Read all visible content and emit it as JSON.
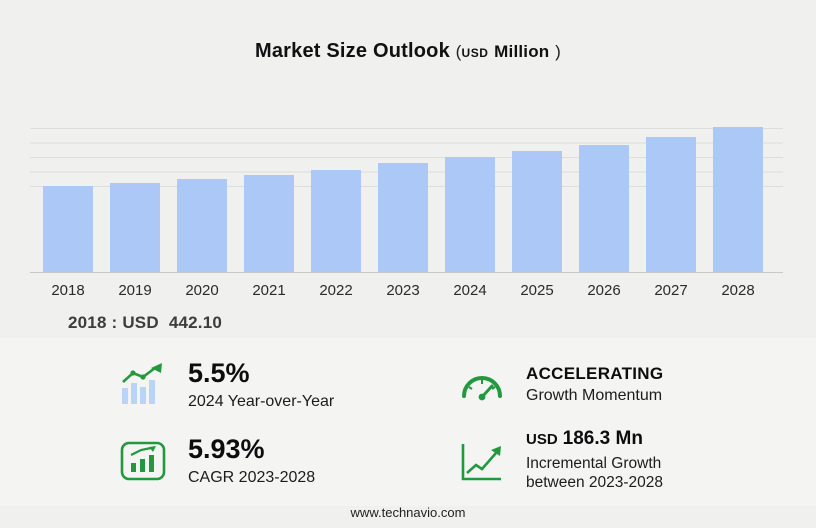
{
  "title": {
    "main": "Market Size Outlook",
    "paren_open": "(",
    "currency": "USD",
    "unit": "Million",
    "paren_close": ")"
  },
  "chart_data": {
    "type": "bar",
    "title": "Market Size Outlook (USD Million)",
    "categories": [
      "2018",
      "2019",
      "2020",
      "2021",
      "2022",
      "2023",
      "2024",
      "2025",
      "2026",
      "2027",
      "2028"
    ],
    "values": [
      442.1,
      458,
      477,
      497,
      523,
      557.9,
      588.6,
      620,
      652,
      694,
      744.2
    ],
    "xlabel": "",
    "ylabel": "USD Million",
    "ylim": [
      0,
      760
    ],
    "grid": true,
    "legend": "none",
    "bar_color": "#abc8f7",
    "annotations": [
      "2018 : USD 442.10"
    ]
  },
  "annotation": {
    "prefix": "2018 : USD",
    "value": "442.10"
  },
  "stats": [
    {
      "icon": "yoy-bars-trend-icon",
      "value": "5.5%",
      "label": "2024 Year-over-Year"
    },
    {
      "icon": "speedometer-icon",
      "value": "ACCELERATING",
      "label": "Growth Momentum"
    },
    {
      "icon": "cagr-chart-icon",
      "value": "5.93%",
      "label": "CAGR 2023-2028"
    },
    {
      "icon": "incremental-growth-icon",
      "value_prefix": "USD",
      "value": "186.3 Mn",
      "label": "Incremental Growth between 2023-2028"
    }
  ],
  "footer": {
    "url": "www.technavio.com"
  },
  "colors": {
    "background": "#f0f0ee",
    "bar": "#abc8f7",
    "accent_green": "#23993f",
    "gridline": "#dddddb"
  }
}
